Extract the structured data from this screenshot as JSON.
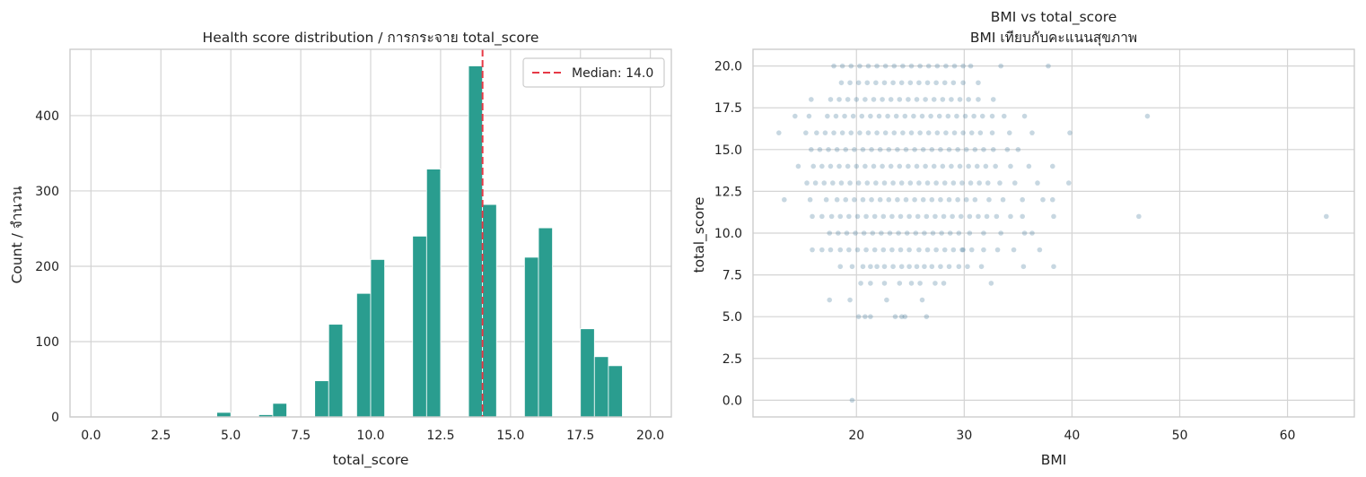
{
  "chart_data": [
    {
      "type": "bar",
      "subtype": "histogram",
      "title": "Health score distribution / การกระจาย total_score",
      "xlabel": "total_score",
      "ylabel": "Count / จำนวน",
      "xlim": [
        -0.75,
        20.75
      ],
      "ylim": [
        0,
        488
      ],
      "x_ticks": [
        "0.0",
        "2.5",
        "5.0",
        "7.5",
        "10.0",
        "12.5",
        "15.0",
        "17.5",
        "20.0"
      ],
      "x_tick_values": [
        0,
        2.5,
        5,
        7.5,
        10,
        12.5,
        15,
        17.5,
        20
      ],
      "y_ticks": [
        "0",
        "100",
        "200",
        "300",
        "400"
      ],
      "y_tick_values": [
        0,
        100,
        200,
        300,
        400
      ],
      "grid": true,
      "bar_color": "#2a9d8f",
      "bins": [
        {
          "x0": 4.5,
          "x1": 5.0,
          "count": 6
        },
        {
          "x0": 6.0,
          "x1": 6.5,
          "count": 3
        },
        {
          "x0": 6.5,
          "x1": 7.0,
          "count": 18
        },
        {
          "x0": 8.0,
          "x1": 8.5,
          "count": 48
        },
        {
          "x0": 8.5,
          "x1": 9.0,
          "count": 123
        },
        {
          "x0": 9.5,
          "x1": 10.0,
          "count": 164
        },
        {
          "x0": 10.0,
          "x1": 10.5,
          "count": 209
        },
        {
          "x0": 11.5,
          "x1": 12.0,
          "count": 240
        },
        {
          "x0": 12.0,
          "x1": 12.5,
          "count": 329
        },
        {
          "x0": 13.5,
          "x1": 14.0,
          "count": 466
        },
        {
          "x0": 14.0,
          "x1": 14.5,
          "count": 282
        },
        {
          "x0": 15.5,
          "x1": 16.0,
          "count": 212
        },
        {
          "x0": 16.0,
          "x1": 16.5,
          "count": 251
        },
        {
          "x0": 17.5,
          "x1": 18.0,
          "count": 117
        },
        {
          "x0": 18.0,
          "x1": 18.5,
          "count": 80
        },
        {
          "x0": 18.5,
          "x1": 19.0,
          "count": 68
        }
      ],
      "median_line": {
        "value": 14.0,
        "label": "Median: 14.0",
        "color": "#e63946"
      },
      "legend_position": "top-right"
    },
    {
      "type": "scatter",
      "title": "BMI vs total_score",
      "subtitle": "BMI เทียบกับคะแนนสุขภาพ",
      "xlabel": "BMI",
      "ylabel": "total_score",
      "xlim": [
        10.4,
        66.2
      ],
      "ylim": [
        -1.0,
        21.0
      ],
      "x_ticks": [
        "20",
        "30",
        "40",
        "50",
        "60"
      ],
      "x_tick_values": [
        20,
        30,
        40,
        50,
        60
      ],
      "y_ticks": [
        "0.0",
        "2.5",
        "5.0",
        "7.5",
        "10.0",
        "12.5",
        "15.0",
        "17.5",
        "20.0"
      ],
      "y_tick_values": [
        0,
        2.5,
        5,
        7.5,
        10,
        12.5,
        15,
        17.5,
        20
      ],
      "grid": true,
      "point_color": "#457b9d",
      "point_opacity": 0.3,
      "points": [
        [
          19.6,
          0
        ],
        [
          20.2,
          5
        ],
        [
          20.8,
          5
        ],
        [
          21.3,
          5
        ],
        [
          23.6,
          5
        ],
        [
          24.2,
          5
        ],
        [
          24.5,
          5
        ],
        [
          26.5,
          5
        ],
        [
          17.5,
          6
        ],
        [
          19.4,
          6
        ],
        [
          22.8,
          6
        ],
        [
          26.1,
          6
        ],
        [
          20.4,
          7
        ],
        [
          21.3,
          7
        ],
        [
          22.6,
          7
        ],
        [
          24.0,
          7
        ],
        [
          25.1,
          7
        ],
        [
          25.9,
          7
        ],
        [
          27.3,
          7
        ],
        [
          28.1,
          7
        ],
        [
          32.5,
          7
        ],
        [
          18.5,
          8
        ],
        [
          19.6,
          8
        ],
        [
          20.6,
          8
        ],
        [
          21.3,
          8
        ],
        [
          21.9,
          8
        ],
        [
          22.6,
          8
        ],
        [
          23.4,
          8
        ],
        [
          24.2,
          8
        ],
        [
          24.9,
          8
        ],
        [
          25.6,
          8
        ],
        [
          26.3,
          8
        ],
        [
          27.0,
          8
        ],
        [
          27.8,
          8
        ],
        [
          28.6,
          8
        ],
        [
          29.5,
          8
        ],
        [
          30.3,
          8
        ],
        [
          31.6,
          8
        ],
        [
          35.5,
          8
        ],
        [
          38.3,
          8
        ],
        [
          15.9,
          9
        ],
        [
          16.8,
          9
        ],
        [
          17.6,
          9
        ],
        [
          18.5,
          9
        ],
        [
          19.3,
          9
        ],
        [
          20.1,
          9
        ],
        [
          20.9,
          9
        ],
        [
          21.7,
          9
        ],
        [
          22.5,
          9
        ],
        [
          23.3,
          9
        ],
        [
          24.1,
          9
        ],
        [
          24.9,
          9
        ],
        [
          25.8,
          9
        ],
        [
          26.6,
          9
        ],
        [
          27.4,
          9
        ],
        [
          28.2,
          9
        ],
        [
          29.0,
          9
        ],
        [
          29.8,
          9
        ],
        [
          29.9,
          9
        ],
        [
          30.7,
          9
        ],
        [
          31.8,
          9
        ],
        [
          33.1,
          9
        ],
        [
          34.6,
          9
        ],
        [
          37.0,
          9
        ],
        [
          17.5,
          10
        ],
        [
          18.3,
          10
        ],
        [
          19.1,
          10
        ],
        [
          19.9,
          10
        ],
        [
          20.7,
          10
        ],
        [
          21.5,
          10
        ],
        [
          22.3,
          10
        ],
        [
          23.1,
          10
        ],
        [
          23.9,
          10
        ],
        [
          24.7,
          10
        ],
        [
          25.5,
          10
        ],
        [
          26.3,
          10
        ],
        [
          27.1,
          10
        ],
        [
          27.9,
          10
        ],
        [
          28.7,
          10
        ],
        [
          29.5,
          10
        ],
        [
          30.5,
          10
        ],
        [
          31.8,
          10
        ],
        [
          33.4,
          10
        ],
        [
          35.6,
          10
        ],
        [
          36.3,
          10
        ],
        [
          15.9,
          11
        ],
        [
          16.8,
          11
        ],
        [
          17.7,
          11
        ],
        [
          18.5,
          11
        ],
        [
          19.3,
          11
        ],
        [
          20.1,
          11
        ],
        [
          20.9,
          11
        ],
        [
          21.7,
          11
        ],
        [
          22.5,
          11
        ],
        [
          23.3,
          11
        ],
        [
          24.1,
          11
        ],
        [
          24.9,
          11
        ],
        [
          25.7,
          11
        ],
        [
          26.5,
          11
        ],
        [
          27.3,
          11
        ],
        [
          28.1,
          11
        ],
        [
          28.9,
          11
        ],
        [
          29.7,
          11
        ],
        [
          30.5,
          11
        ],
        [
          31.3,
          11
        ],
        [
          32.1,
          11
        ],
        [
          33.0,
          11
        ],
        [
          34.3,
          11
        ],
        [
          35.4,
          11
        ],
        [
          38.3,
          11
        ],
        [
          46.2,
          11
        ],
        [
          63.6,
          11
        ],
        [
          13.3,
          12
        ],
        [
          15.7,
          12
        ],
        [
          17.2,
          12
        ],
        [
          18.2,
          12
        ],
        [
          19.0,
          12
        ],
        [
          19.8,
          12
        ],
        [
          20.6,
          12
        ],
        [
          21.4,
          12
        ],
        [
          22.2,
          12
        ],
        [
          23.0,
          12
        ],
        [
          23.8,
          12
        ],
        [
          24.6,
          12
        ],
        [
          25.4,
          12
        ],
        [
          26.2,
          12
        ],
        [
          27.0,
          12
        ],
        [
          27.8,
          12
        ],
        [
          28.6,
          12
        ],
        [
          29.4,
          12
        ],
        [
          30.2,
          12
        ],
        [
          31.0,
          12
        ],
        [
          32.3,
          12
        ],
        [
          33.6,
          12
        ],
        [
          35.4,
          12
        ],
        [
          37.3,
          12
        ],
        [
          38.2,
          12
        ],
        [
          15.4,
          13
        ],
        [
          16.2,
          13
        ],
        [
          17.0,
          13
        ],
        [
          17.8,
          13
        ],
        [
          18.6,
          13
        ],
        [
          19.4,
          13
        ],
        [
          20.2,
          13
        ],
        [
          21.0,
          13
        ],
        [
          21.8,
          13
        ],
        [
          22.6,
          13
        ],
        [
          23.4,
          13
        ],
        [
          24.2,
          13
        ],
        [
          25.0,
          13
        ],
        [
          25.8,
          13
        ],
        [
          26.6,
          13
        ],
        [
          27.4,
          13
        ],
        [
          28.2,
          13
        ],
        [
          29.0,
          13
        ],
        [
          29.8,
          13
        ],
        [
          30.6,
          13
        ],
        [
          31.4,
          13
        ],
        [
          32.2,
          13
        ],
        [
          33.3,
          13
        ],
        [
          34.7,
          13
        ],
        [
          36.8,
          13
        ],
        [
          39.7,
          13
        ],
        [
          14.6,
          14
        ],
        [
          16.0,
          14
        ],
        [
          16.8,
          14
        ],
        [
          17.6,
          14
        ],
        [
          18.4,
          14
        ],
        [
          19.2,
          14
        ],
        [
          20.0,
          14
        ],
        [
          20.8,
          14
        ],
        [
          21.6,
          14
        ],
        [
          22.4,
          14
        ],
        [
          23.2,
          14
        ],
        [
          24.0,
          14
        ],
        [
          24.8,
          14
        ],
        [
          25.6,
          14
        ],
        [
          26.4,
          14
        ],
        [
          27.2,
          14
        ],
        [
          28.0,
          14
        ],
        [
          28.8,
          14
        ],
        [
          29.6,
          14
        ],
        [
          30.4,
          14
        ],
        [
          31.2,
          14
        ],
        [
          32.0,
          14
        ],
        [
          32.9,
          14
        ],
        [
          34.3,
          14
        ],
        [
          36.0,
          14
        ],
        [
          38.2,
          14
        ],
        [
          12.8,
          16
        ],
        [
          15.3,
          16
        ],
        [
          16.3,
          16
        ],
        [
          17.1,
          16
        ],
        [
          17.9,
          16
        ],
        [
          18.7,
          16
        ],
        [
          19.5,
          16
        ],
        [
          20.3,
          16
        ],
        [
          21.1,
          16
        ],
        [
          21.9,
          16
        ],
        [
          22.7,
          16
        ],
        [
          23.5,
          16
        ],
        [
          24.3,
          16
        ],
        [
          25.1,
          16
        ],
        [
          25.9,
          16
        ],
        [
          26.7,
          16
        ],
        [
          27.5,
          16
        ],
        [
          28.3,
          16
        ],
        [
          29.1,
          16
        ],
        [
          29.9,
          16
        ],
        [
          30.7,
          16
        ],
        [
          31.5,
          16
        ],
        [
          32.6,
          16
        ],
        [
          34.2,
          16
        ],
        [
          36.3,
          16
        ],
        [
          39.8,
          16
        ],
        [
          15.8,
          15
        ],
        [
          16.6,
          15
        ],
        [
          17.4,
          15
        ],
        [
          18.2,
          15
        ],
        [
          19.0,
          15
        ],
        [
          19.8,
          15
        ],
        [
          20.6,
          15
        ],
        [
          21.4,
          15
        ],
        [
          22.2,
          15
        ],
        [
          23.0,
          15
        ],
        [
          23.8,
          15
        ],
        [
          24.6,
          15
        ],
        [
          25.4,
          15
        ],
        [
          26.2,
          15
        ],
        [
          27.0,
          15
        ],
        [
          27.8,
          15
        ],
        [
          28.6,
          15
        ],
        [
          29.4,
          15
        ],
        [
          30.2,
          15
        ],
        [
          31.0,
          15
        ],
        [
          31.8,
          15
        ],
        [
          32.7,
          15
        ],
        [
          34.0,
          15
        ],
        [
          35.0,
          15
        ],
        [
          14.3,
          17
        ],
        [
          15.6,
          17
        ],
        [
          17.3,
          17
        ],
        [
          18.1,
          17
        ],
        [
          18.9,
          17
        ],
        [
          19.7,
          17
        ],
        [
          20.5,
          17
        ],
        [
          21.3,
          17
        ],
        [
          22.1,
          17
        ],
        [
          22.9,
          17
        ],
        [
          23.7,
          17
        ],
        [
          24.5,
          17
        ],
        [
          25.3,
          17
        ],
        [
          26.1,
          17
        ],
        [
          26.9,
          17
        ],
        [
          27.7,
          17
        ],
        [
          28.5,
          17
        ],
        [
          29.3,
          17
        ],
        [
          30.1,
          17
        ],
        [
          30.9,
          17
        ],
        [
          31.7,
          17
        ],
        [
          32.6,
          17
        ],
        [
          33.7,
          17
        ],
        [
          35.6,
          17
        ],
        [
          47.0,
          17
        ],
        [
          15.8,
          18
        ],
        [
          17.6,
          18
        ],
        [
          18.4,
          18
        ],
        [
          19.2,
          18
        ],
        [
          20.0,
          18
        ],
        [
          20.8,
          18
        ],
        [
          21.6,
          18
        ],
        [
          22.4,
          18
        ],
        [
          23.2,
          18
        ],
        [
          24.0,
          18
        ],
        [
          24.8,
          18
        ],
        [
          25.6,
          18
        ],
        [
          26.4,
          18
        ],
        [
          27.2,
          18
        ],
        [
          28.0,
          18
        ],
        [
          28.8,
          18
        ],
        [
          29.6,
          18
        ],
        [
          30.4,
          18
        ],
        [
          31.3,
          18
        ],
        [
          32.7,
          18
        ],
        [
          18.6,
          19
        ],
        [
          19.4,
          19
        ],
        [
          20.2,
          19
        ],
        [
          21.0,
          19
        ],
        [
          21.8,
          19
        ],
        [
          22.6,
          19
        ],
        [
          23.4,
          19
        ],
        [
          24.2,
          19
        ],
        [
          25.0,
          19
        ],
        [
          25.8,
          19
        ],
        [
          26.6,
          19
        ],
        [
          27.4,
          19
        ],
        [
          28.2,
          19
        ],
        [
          29.0,
          19
        ],
        [
          29.9,
          19
        ],
        [
          31.3,
          19
        ],
        [
          17.9,
          20
        ],
        [
          18.7,
          20
        ],
        [
          19.5,
          20
        ],
        [
          20.3,
          20
        ],
        [
          21.1,
          20
        ],
        [
          21.9,
          20
        ],
        [
          22.7,
          20
        ],
        [
          23.5,
          20
        ],
        [
          24.3,
          20
        ],
        [
          25.1,
          20
        ],
        [
          25.9,
          20
        ],
        [
          26.7,
          20
        ],
        [
          27.5,
          20
        ],
        [
          28.3,
          20
        ],
        [
          29.1,
          20
        ],
        [
          29.9,
          20
        ],
        [
          30.6,
          20
        ],
        [
          33.4,
          20
        ],
        [
          37.8,
          20
        ]
      ]
    }
  ]
}
